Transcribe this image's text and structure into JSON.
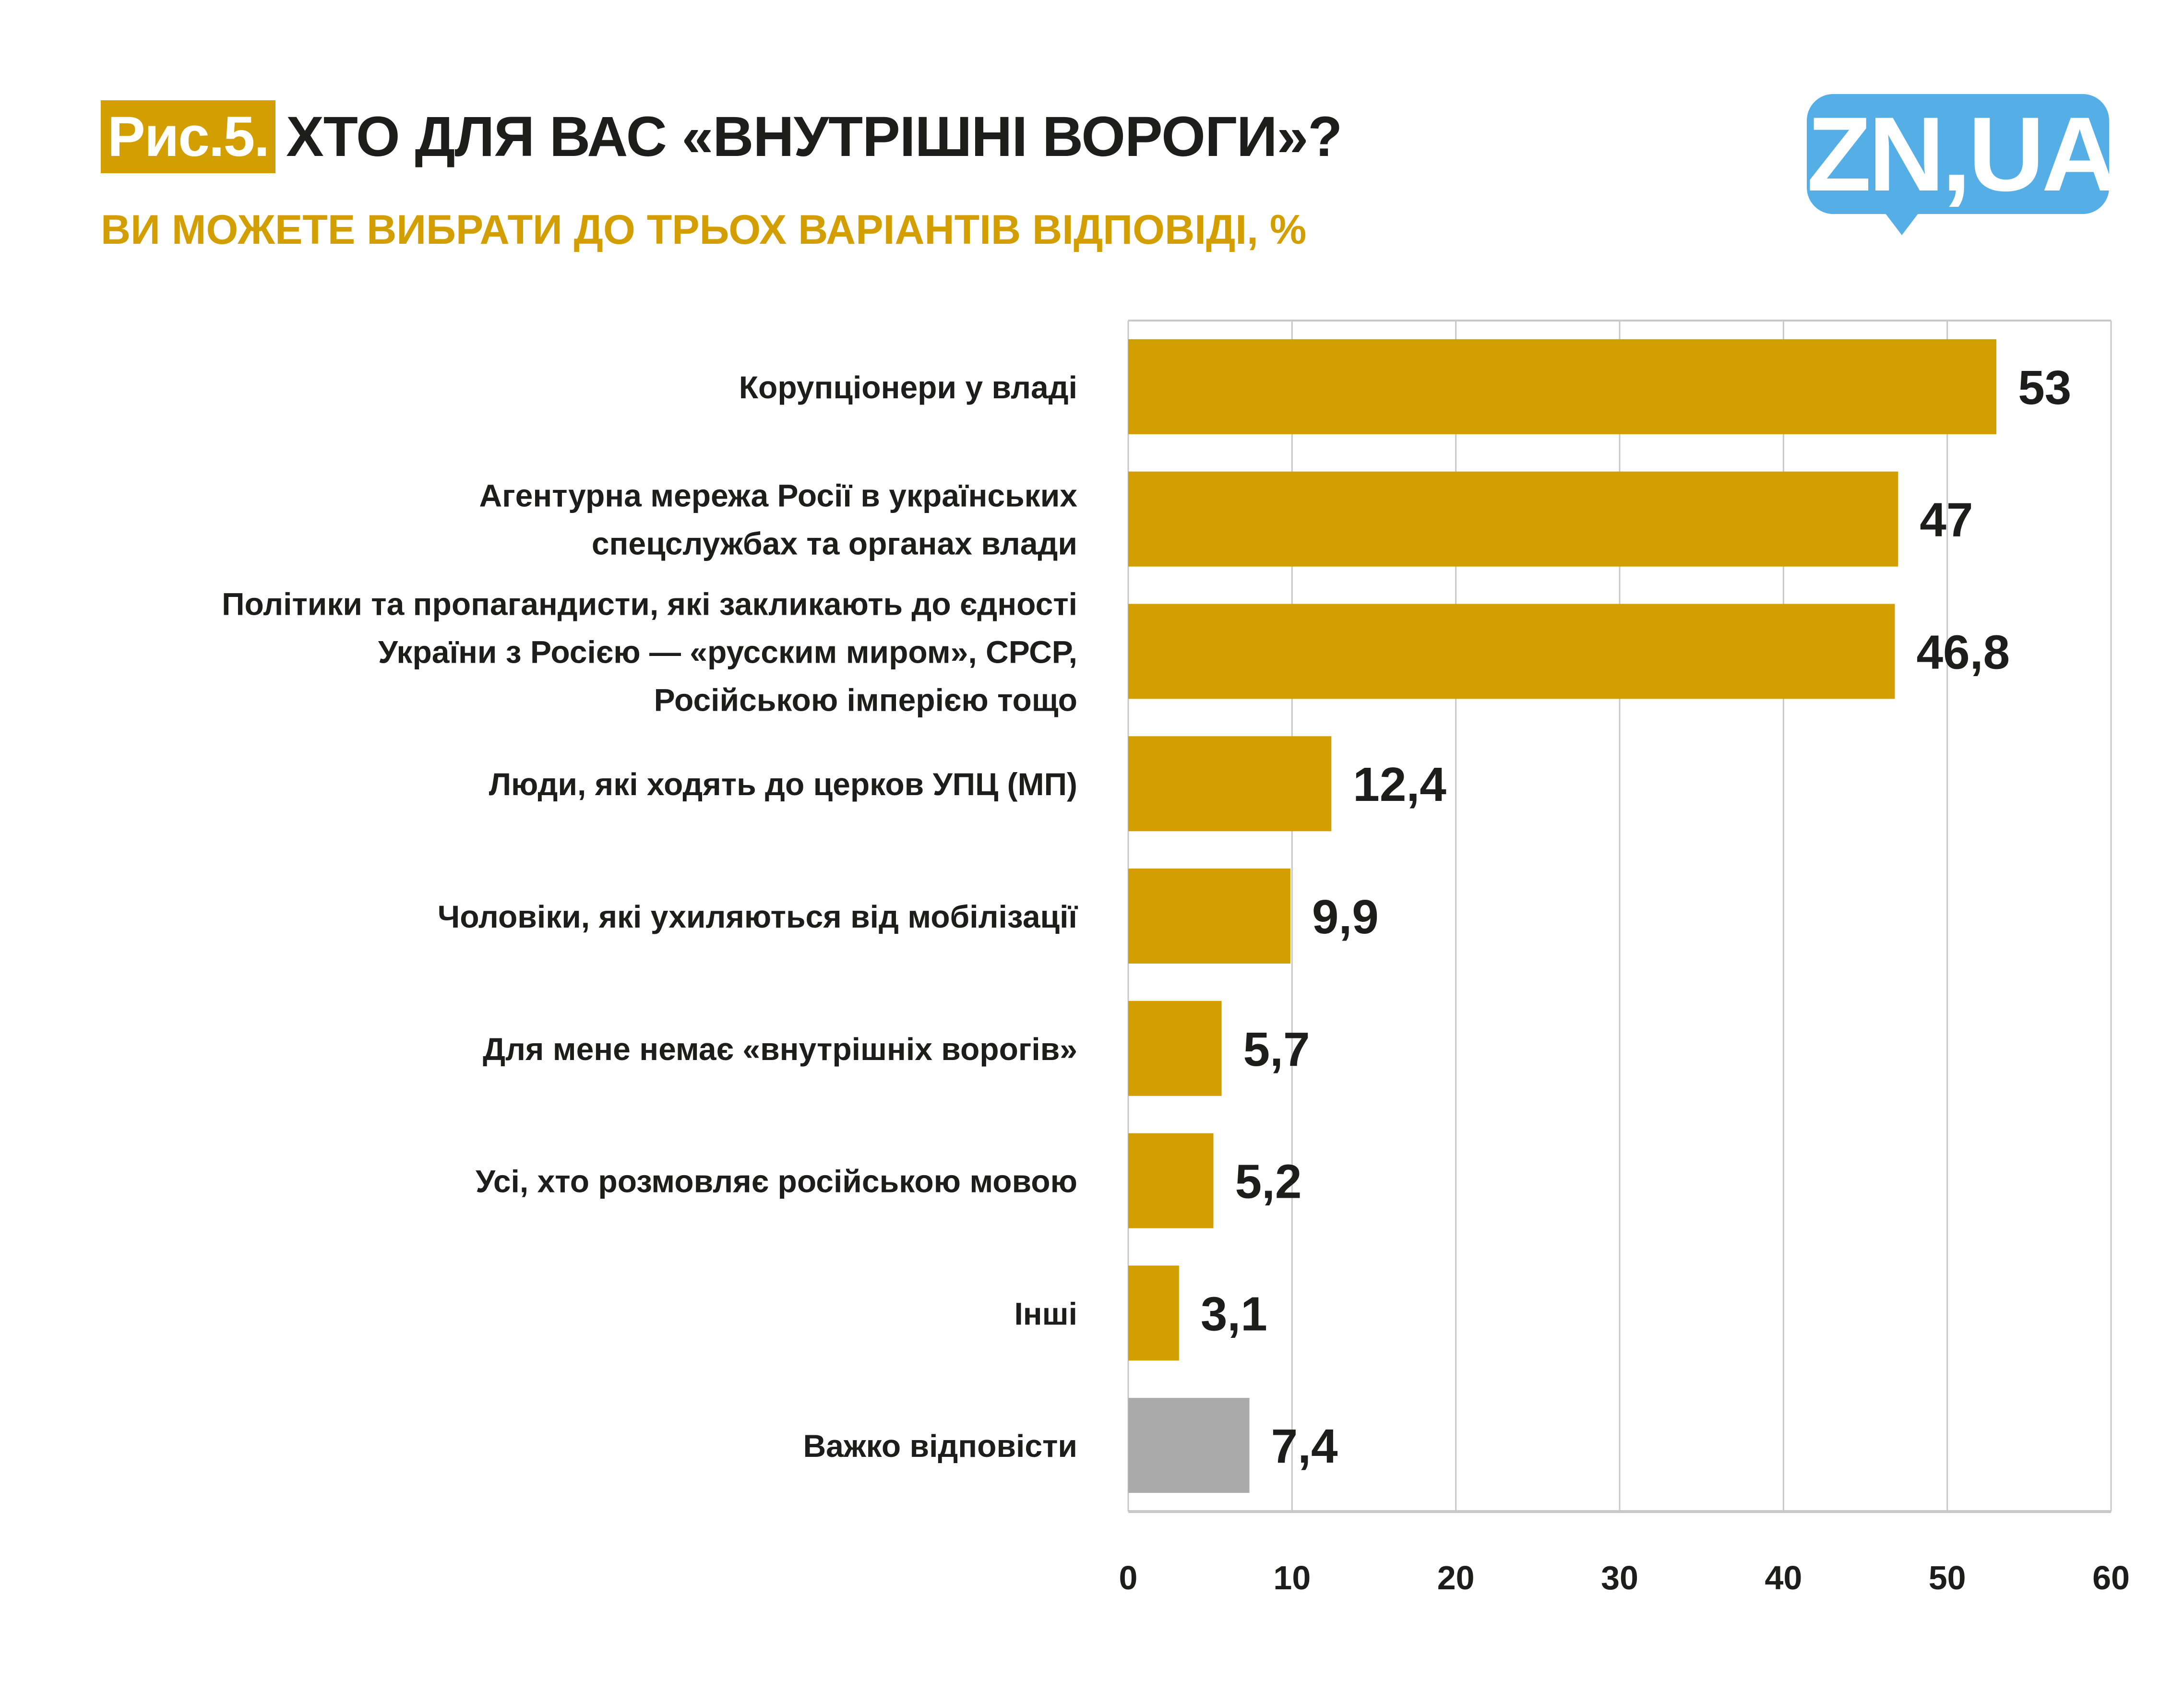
{
  "header": {
    "figure_badge": "Рис.5.",
    "title": "ХТО ДЛЯ ВАС «ВНУТРІШНІ ВОРОГИ»?",
    "subtitle": "ВИ МОЖЕТЕ ВИБРАТИ ДО ТРЬОХ ВАРІАНТІВ ВІДПОВІДІ, %"
  },
  "logo": {
    "text": "ZN,UA",
    "color": "#55AFE6"
  },
  "colors": {
    "accent": "#D39E00",
    "neutral": "#ABABAB",
    "text": "#1D1D1B",
    "grid": "#C8C8C8"
  },
  "chart_data": {
    "type": "bar",
    "orientation": "horizontal",
    "title": "ХТО ДЛЯ ВАС «ВНУТРІШНІ ВОРОГИ»?",
    "subtitle": "ВИ МОЖЕТЕ ВИБРАТИ ДО ТРЬОХ ВАРІАНТІВ ВІДПОВІДІ, %",
    "xlabel": "",
    "ylabel": "",
    "xlim": [
      0,
      60
    ],
    "x_ticks": [
      0,
      10,
      20,
      30,
      40,
      50,
      60
    ],
    "grid": true,
    "legend": "none",
    "categories": [
      [
        "Корупціонери у владі"
      ],
      [
        "Агентурна мережа Росії в українських",
        "спецслужбах та органах влади"
      ],
      [
        "Політики та пропагандисти, які закликають до єдності",
        "України  з Росією — «русским миром», СРСР,",
        "Російською імперією тощо"
      ],
      [
        "Люди, які ходять до церков УПЦ (МП)"
      ],
      [
        "Чоловіки, які ухиляються від мобілізації"
      ],
      [
        "Для мене немає «внутрішніх ворогів»"
      ],
      [
        "Усі, хто розмовляє російською мовою"
      ],
      [
        "Інші"
      ],
      [
        "Важко відповісти"
      ]
    ],
    "values": [
      53,
      47,
      46.8,
      12.4,
      9.9,
      5.7,
      5.2,
      3.1,
      7.4
    ],
    "value_labels": [
      "53",
      "47",
      "46,8",
      "12,4",
      "9,9",
      "5,7",
      "5,2",
      "3,1",
      "7,4"
    ],
    "bar_colors": [
      "#D39E00",
      "#D39E00",
      "#D39E00",
      "#D39E00",
      "#D39E00",
      "#D39E00",
      "#D39E00",
      "#D39E00",
      "#ABABAB"
    ]
  }
}
